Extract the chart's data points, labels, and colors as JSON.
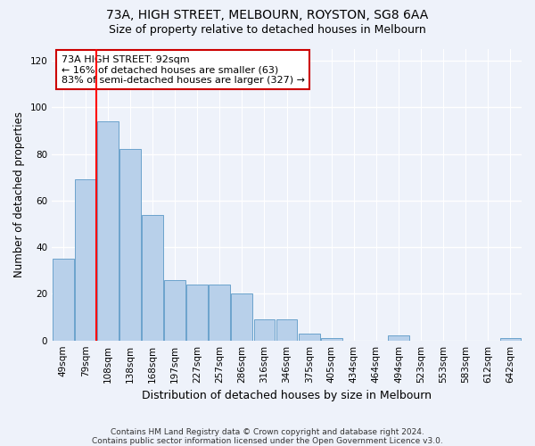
{
  "title1": "73A, HIGH STREET, MELBOURN, ROYSTON, SG8 6AA",
  "title2": "Size of property relative to detached houses in Melbourn",
  "xlabel": "Distribution of detached houses by size in Melbourn",
  "ylabel": "Number of detached properties",
  "categories": [
    "49sqm",
    "79sqm",
    "108sqm",
    "138sqm",
    "168sqm",
    "197sqm",
    "227sqm",
    "257sqm",
    "286sqm",
    "316sqm",
    "346sqm",
    "375sqm",
    "405sqm",
    "434sqm",
    "464sqm",
    "494sqm",
    "523sqm",
    "553sqm",
    "583sqm",
    "612sqm",
    "642sqm"
  ],
  "values": [
    35,
    69,
    94,
    82,
    54,
    26,
    24,
    24,
    20,
    9,
    9,
    3,
    1,
    0,
    0,
    2,
    0,
    0,
    0,
    0,
    1
  ],
  "bar_color": "#b8d0ea",
  "bar_edge_color": "#6ba3cc",
  "red_line_x": 1.5,
  "annotation_title": "73A HIGH STREET: 92sqm",
  "annotation_line1": "← 16% of detached houses are smaller (63)",
  "annotation_line2": "83% of semi-detached houses are larger (327) →",
  "annotation_box_color": "#ffffff",
  "annotation_box_edge": "#cc0000",
  "ylim": [
    0,
    125
  ],
  "yticks": [
    0,
    20,
    40,
    60,
    80,
    100,
    120
  ],
  "footnote1": "Contains HM Land Registry data © Crown copyright and database right 2024.",
  "footnote2": "Contains public sector information licensed under the Open Government Licence v3.0.",
  "bg_color": "#eef2fa",
  "grid_color": "#ffffff",
  "title1_fontsize": 10,
  "title2_fontsize": 9,
  "tick_fontsize": 7.5,
  "ylabel_fontsize": 8.5,
  "xlabel_fontsize": 9
}
